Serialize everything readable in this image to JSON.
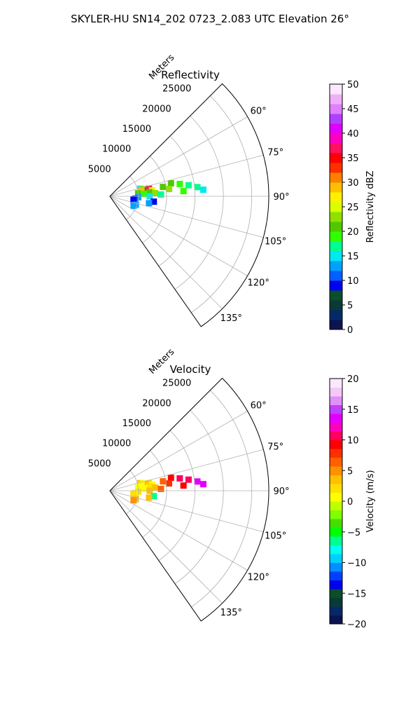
{
  "figure": {
    "suptitle": "SKYLER-HU  SN14_202  0723_2.083 UTC Elevation 26°"
  },
  "chart_data": [
    {
      "type": "heatmap",
      "projection": "polar-sector",
      "title": "Reflectivity",
      "radial_label": "Meters",
      "radial_ticks": [
        5000,
        10000,
        15000,
        20000,
        25000
      ],
      "radial_tick_labels": [
        "5000",
        "10000",
        "15000",
        "20000",
        "25000"
      ],
      "rlim": [
        0,
        28000
      ],
      "azimuth_range_deg": [
        45,
        145
      ],
      "azimuth_ticks_deg": [
        60,
        75,
        90,
        105,
        120,
        135
      ],
      "azimuth_tick_labels": [
        "60°",
        "75°",
        "90°",
        "105°",
        "120°",
        "135°"
      ],
      "grid": true,
      "colorbar": {
        "label": "Reflectivity dBZ",
        "range": [
          0,
          50
        ],
        "ticks": [
          0,
          5,
          10,
          15,
          20,
          25,
          30,
          35,
          40,
          45,
          50
        ],
        "tick_labels": [
          "0",
          "5",
          "10",
          "15",
          "20",
          "25",
          "30",
          "35",
          "40",
          "45",
          "50"
        ],
        "stops": [
          "#0c1450",
          "#062a68",
          "#0a3a36",
          "#0a4e2a",
          "#0000f0",
          "#0060ff",
          "#00a0ff",
          "#00e8f0",
          "#00ff90",
          "#30ff00",
          "#50c800",
          "#90e000",
          "#d8ff00",
          "#fff000",
          "#ffc000",
          "#ff8000",
          "#ff3000",
          "#ff0000",
          "#ff1060",
          "#ff00c0",
          "#e000ff",
          "#b040ff",
          "#e080ff",
          "#f0b0f8",
          "#fce8ff"
        ]
      },
      "cells": [
        {
          "az": 76,
          "range": 5500,
          "value": 14
        },
        {
          "az": 78,
          "range": 6000,
          "value": 22
        },
        {
          "az": 80,
          "range": 5500,
          "value": 28
        },
        {
          "az": 79,
          "range": 7000,
          "value": 33
        },
        {
          "az": 80,
          "range": 6800,
          "value": 36
        },
        {
          "az": 82,
          "range": 7500,
          "value": 27
        },
        {
          "az": 84,
          "range": 5000,
          "value": 20
        },
        {
          "az": 84,
          "range": 7000,
          "value": 21
        },
        {
          "az": 86,
          "range": 6000,
          "value": 18
        },
        {
          "az": 86,
          "range": 8000,
          "value": 22
        },
        {
          "az": 80,
          "range": 9500,
          "value": 20
        },
        {
          "az": 78,
          "range": 11000,
          "value": 21
        },
        {
          "az": 80,
          "range": 12500,
          "value": 19
        },
        {
          "az": 82,
          "range": 14000,
          "value": 17
        },
        {
          "az": 84,
          "range": 15500,
          "value": 16
        },
        {
          "az": 86,
          "range": 16500,
          "value": 14
        },
        {
          "az": 86,
          "range": 13000,
          "value": 18
        },
        {
          "az": 83,
          "range": 10500,
          "value": 22
        },
        {
          "az": 88,
          "range": 9000,
          "value": 17
        },
        {
          "az": 90,
          "range": 7000,
          "value": 15
        },
        {
          "az": 92,
          "range": 5000,
          "value": 13
        },
        {
          "az": 95,
          "range": 4500,
          "value": 11
        },
        {
          "az": 98,
          "range": 4200,
          "value": 9
        },
        {
          "az": 108,
          "range": 4800,
          "value": 13
        },
        {
          "az": 112,
          "range": 4500,
          "value": 12
        },
        {
          "az": 97,
          "range": 7800,
          "value": 9
        },
        {
          "az": 100,
          "range": 7000,
          "value": 12
        }
      ]
    },
    {
      "type": "heatmap",
      "projection": "polar-sector",
      "title": "Velocity",
      "radial_label": "Meters",
      "radial_ticks": [
        5000,
        10000,
        15000,
        20000,
        25000
      ],
      "radial_tick_labels": [
        "5000",
        "10000",
        "15000",
        "20000",
        "25000"
      ],
      "rlim": [
        0,
        28000
      ],
      "azimuth_range_deg": [
        45,
        145
      ],
      "azimuth_ticks_deg": [
        60,
        75,
        90,
        105,
        120,
        135
      ],
      "azimuth_tick_labels": [
        "60°",
        "75°",
        "90°",
        "105°",
        "120°",
        "135°"
      ],
      "grid": true,
      "colorbar": {
        "label": "Velocity (m/s)",
        "range": [
          -20,
          20
        ],
        "ticks": [
          -20,
          -15,
          -10,
          -5,
          0,
          5,
          10,
          15,
          20
        ],
        "tick_labels": [
          "−20",
          "−15",
          "−10",
          "−5",
          "0",
          "5",
          "10",
          "15",
          "20"
        ],
        "stops": [
          "#0c1450",
          "#062a68",
          "#0a3a36",
          "#0a4e2a",
          "#0000f0",
          "#0040ff",
          "#0090ff",
          "#00d0ff",
          "#00fff0",
          "#00ff90",
          "#00ff00",
          "#40e000",
          "#80ff00",
          "#c0ff00",
          "#ffff00",
          "#ffe000",
          "#ffc000",
          "#ff9000",
          "#ff6000",
          "#ff3000",
          "#ff0000",
          "#ff0060",
          "#ff00c0",
          "#e000ff",
          "#c040ff",
          "#e090f8",
          "#f4c8f8",
          "#fce8fc"
        ]
      },
      "cells": [
        {
          "az": 76,
          "range": 5500,
          "value": 4
        },
        {
          "az": 78,
          "range": 6000,
          "value": 1
        },
        {
          "az": 80,
          "range": 5500,
          "value": 0
        },
        {
          "az": 79,
          "range": 7000,
          "value": 2
        },
        {
          "az": 80,
          "range": 6800,
          "value": 3
        },
        {
          "az": 82,
          "range": 7500,
          "value": 1
        },
        {
          "az": 84,
          "range": 5000,
          "value": 0
        },
        {
          "az": 84,
          "range": 7000,
          "value": 2
        },
        {
          "az": 86,
          "range": 6000,
          "value": 1
        },
        {
          "az": 86,
          "range": 8000,
          "value": 4
        },
        {
          "az": 80,
          "range": 9500,
          "value": 6
        },
        {
          "az": 78,
          "range": 11000,
          "value": 9
        },
        {
          "az": 80,
          "range": 12500,
          "value": 10
        },
        {
          "az": 82,
          "range": 14000,
          "value": 11
        },
        {
          "az": 84,
          "range": 15500,
          "value": 13
        },
        {
          "az": 86,
          "range": 16500,
          "value": 14
        },
        {
          "az": 86,
          "range": 13000,
          "value": 9
        },
        {
          "az": 83,
          "range": 10500,
          "value": 8
        },
        {
          "az": 88,
          "range": 9000,
          "value": 6
        },
        {
          "az": 90,
          "range": 7000,
          "value": 3
        },
        {
          "az": 92,
          "range": 5000,
          "value": 2
        },
        {
          "az": 95,
          "range": 4500,
          "value": 1
        },
        {
          "az": 98,
          "range": 4200,
          "value": 2
        },
        {
          "az": 108,
          "range": 4800,
          "value": 4
        },
        {
          "az": 112,
          "range": 4500,
          "value": 5
        },
        {
          "az": 97,
          "range": 7800,
          "value": -6
        },
        {
          "az": 100,
          "range": 7000,
          "value": 3
        }
      ]
    }
  ]
}
